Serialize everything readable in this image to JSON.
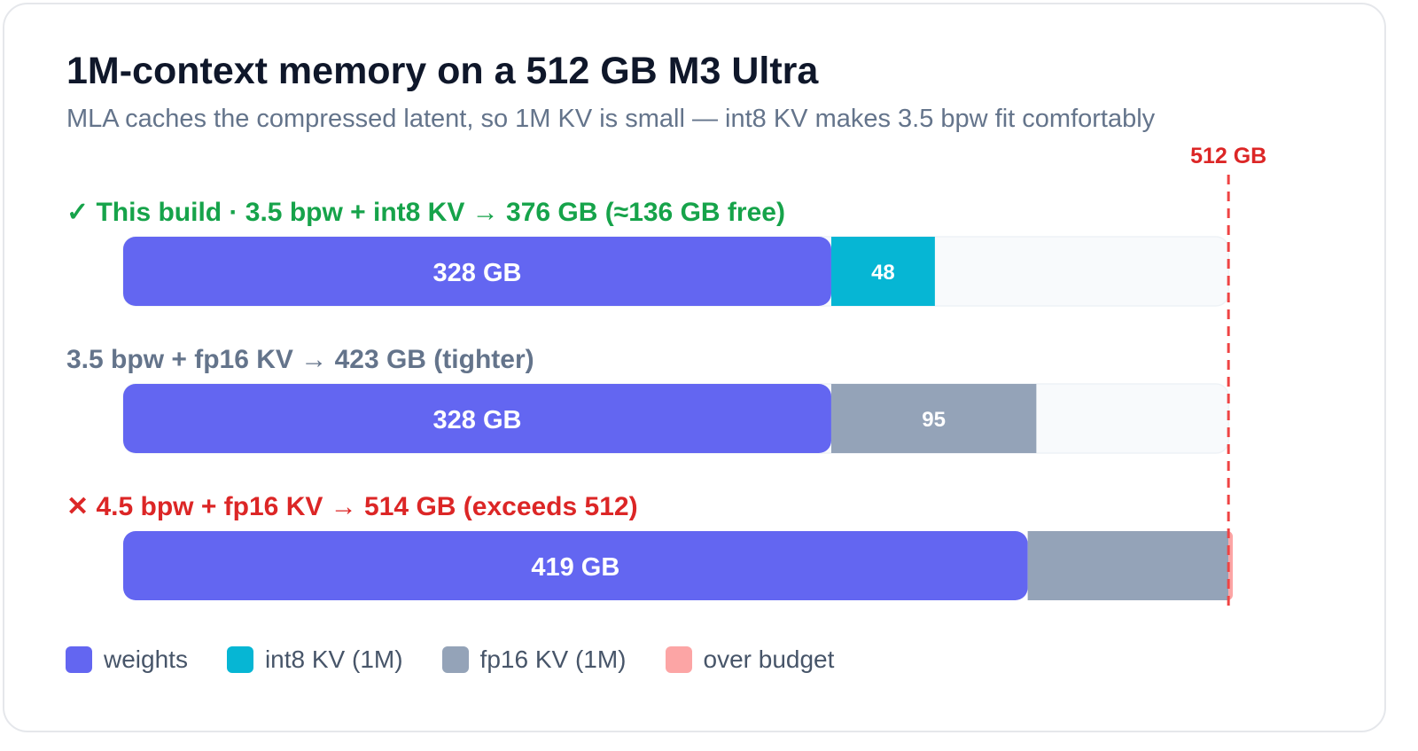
{
  "title": "1M-context memory on a 512 GB M3 Ultra",
  "subtitle": "MLA caches the compressed latent, so 1M KV is small — int8 KV makes 3.5 bpw fit comfortably",
  "chart_data": {
    "type": "bar",
    "orientation": "horizontal",
    "stacked": true,
    "unit": "GB",
    "xlim": [
      0,
      530
    ],
    "budget": {
      "value": 512,
      "label": "512 GB",
      "color": "#ef4444"
    },
    "rows": [
      {
        "label": "✓ This build · 3.5 bpw + int8 KV → 376 GB (≈136 GB free)",
        "label_color": "#16a34a",
        "segments": [
          {
            "series": "weights",
            "value": 328,
            "label": "328 GB"
          },
          {
            "series": "int8 KV (1M)",
            "value": 48,
            "label": "48"
          }
        ]
      },
      {
        "label": "3.5 bpw + fp16 KV → 423 GB (tighter)",
        "label_color": "#64748b",
        "segments": [
          {
            "series": "weights",
            "value": 328,
            "label": "328 GB"
          },
          {
            "series": "fp16 KV (1M)",
            "value": 95,
            "label": "95"
          }
        ]
      },
      {
        "label": "✕ 4.5 bpw + fp16 KV → 514 GB (exceeds 512)",
        "label_color": "#dc2626",
        "segments": [
          {
            "series": "weights",
            "value": 419,
            "label": "419 GB"
          },
          {
            "series": "fp16 KV (1M)",
            "value": 93,
            "label": ""
          },
          {
            "series": "over budget",
            "value": 2,
            "label": ""
          }
        ]
      }
    ],
    "legend": [
      {
        "name": "weights",
        "color": "#6366f1"
      },
      {
        "name": "int8 KV (1M)",
        "color": "#06b6d4"
      },
      {
        "name": "fp16 KV (1M)",
        "color": "#94a3b8"
      },
      {
        "name": "over budget",
        "color": "#fca5a5"
      }
    ],
    "legend_position": "bottom-left"
  }
}
